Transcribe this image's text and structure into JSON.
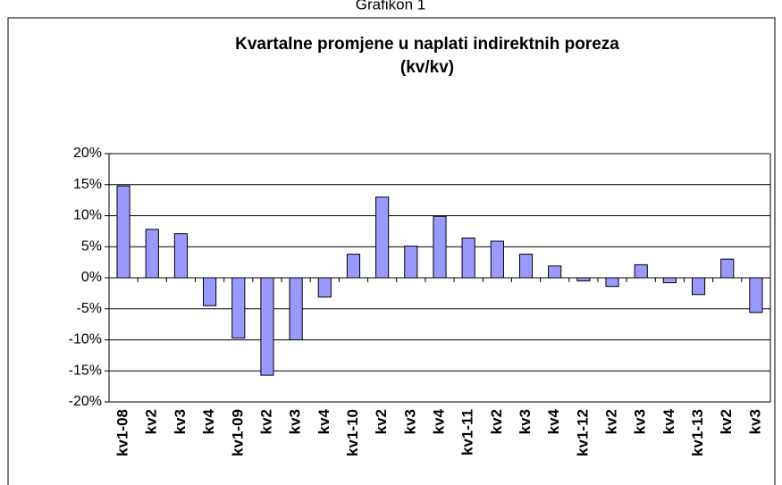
{
  "caption": "Grafikon 1",
  "chart_data": {
    "type": "bar",
    "title": "Kvartalne promjene u naplati indirektnih poreza",
    "subtitle": "(kv/kv)",
    "categories": [
      "kv1-08",
      "kv2",
      "kv3",
      "kv4",
      "kv1-09",
      "kv2",
      "kv3",
      "kv4",
      "kv1-10",
      "kv2",
      "kv3",
      "kv4",
      "kv1-11",
      "kv2",
      "kv3",
      "kv4",
      "kv1-12",
      "kv2",
      "kv3",
      "kv4",
      "kv1-13",
      "kv2",
      "kv3"
    ],
    "values": [
      14.8,
      7.8,
      7.1,
      -4.5,
      -9.7,
      -15.7,
      -10,
      -3.1,
      3.8,
      13,
      5.1,
      9.9,
      6.4,
      5.9,
      3.8,
      1.9,
      -0.5,
      -1.4,
      2.1,
      -0.8,
      -2.7,
      3,
      -5.6
    ],
    "color": "#9999ff",
    "ylim": [
      -20,
      20
    ],
    "yticks": [
      {
        "value": -20,
        "label": "-20%"
      },
      {
        "value": -15,
        "label": "-15%"
      },
      {
        "value": -10,
        "label": "-10%"
      },
      {
        "value": -5,
        "label": "-5%"
      },
      {
        "value": 0,
        "label": "0%"
      },
      {
        "value": 5,
        "label": "5%"
      },
      {
        "value": 10,
        "label": "10%"
      },
      {
        "value": 15,
        "label": "15%"
      },
      {
        "value": 20,
        "label": "20%"
      }
    ],
    "grid": true
  }
}
